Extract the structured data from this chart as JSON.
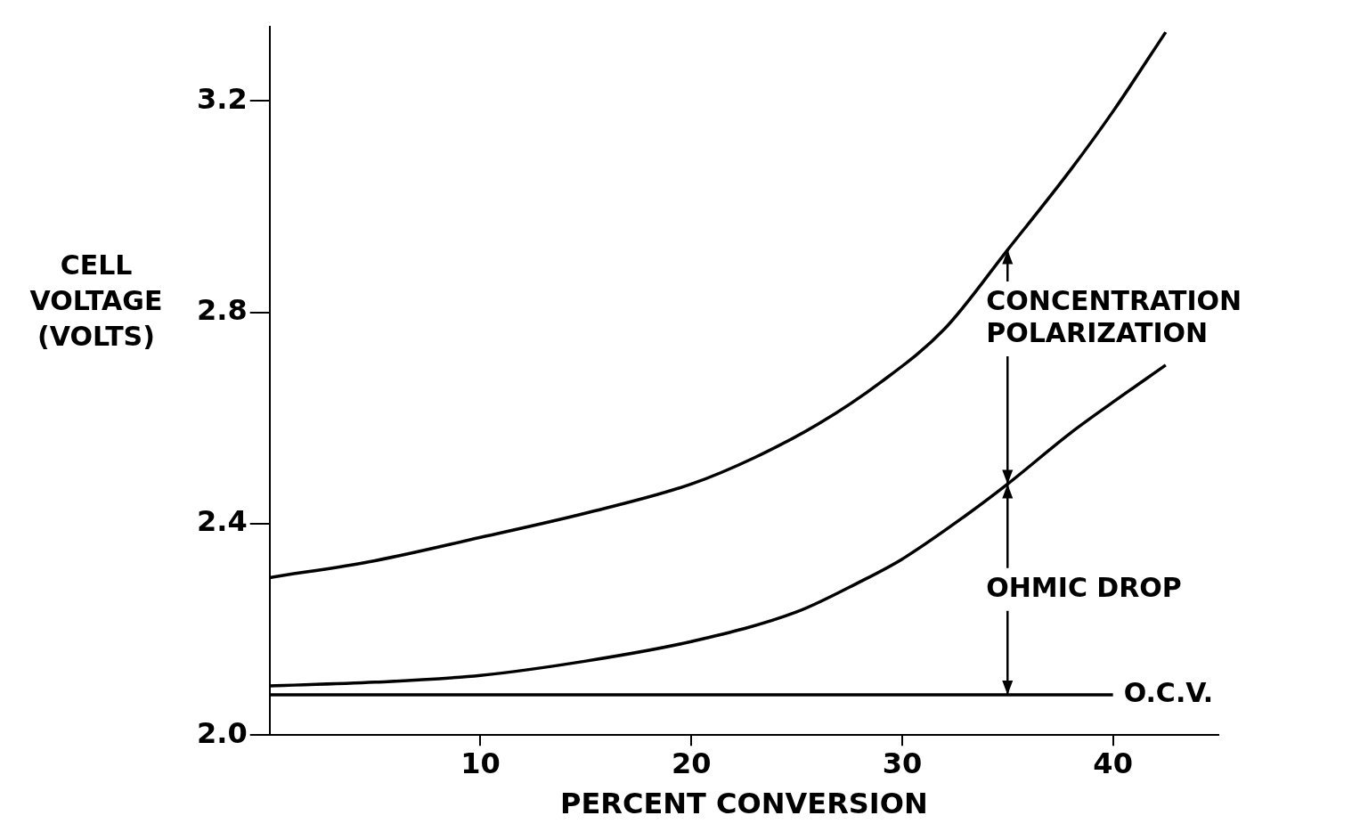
{
  "chart_data": {
    "type": "line",
    "xlabel": "PERCENT CONVERSION",
    "ylabel": "CELL\nVOLTAGE\n(VOLTS)",
    "xlim": [
      0,
      45
    ],
    "ylim": [
      2,
      3.34
    ],
    "xticks": [
      10,
      20,
      30,
      40
    ],
    "yticks": [
      {
        "value": 2,
        "label": "2.0"
      },
      {
        "value": 2.4,
        "label": "2.4"
      },
      {
        "value": 2.8,
        "label": "2.8"
      },
      {
        "value": 3.2,
        "label": "3.2"
      }
    ],
    "grid": false,
    "legend": false,
    "marker": "none",
    "line_style": "solid",
    "series": [
      {
        "color": "#000000",
        "x": [
          0,
          5,
          10,
          15,
          20,
          23,
          26,
          29,
          32,
          35,
          38,
          40,
          42.5
        ],
        "values": [
          2.298,
          2.33,
          2.374,
          2.42,
          2.475,
          2.525,
          2.588,
          2.668,
          2.768,
          2.918,
          3.07,
          3.18,
          3.33
        ]
      },
      {
        "color": "#000000",
        "x": [
          0,
          5,
          10,
          15,
          20,
          25,
          28,
          30,
          33,
          35,
          38,
          40,
          42.5
        ],
        "values": [
          2.093,
          2.1,
          2.113,
          2.14,
          2.177,
          2.233,
          2.29,
          2.333,
          2.415,
          2.475,
          2.572,
          2.63,
          2.7
        ]
      },
      {
        "name": "O.C.V.",
        "color": "#000000",
        "x": [
          0,
          40
        ],
        "values": [
          2.076,
          2.076
        ]
      }
    ],
    "annotations": [
      {
        "text": "CONCENTRATION\nPOLARIZATION",
        "x": 35,
        "y": 2.918
      },
      {
        "text": "OHMIC DROP",
        "x": 35,
        "y": 2.475
      }
    ]
  }
}
